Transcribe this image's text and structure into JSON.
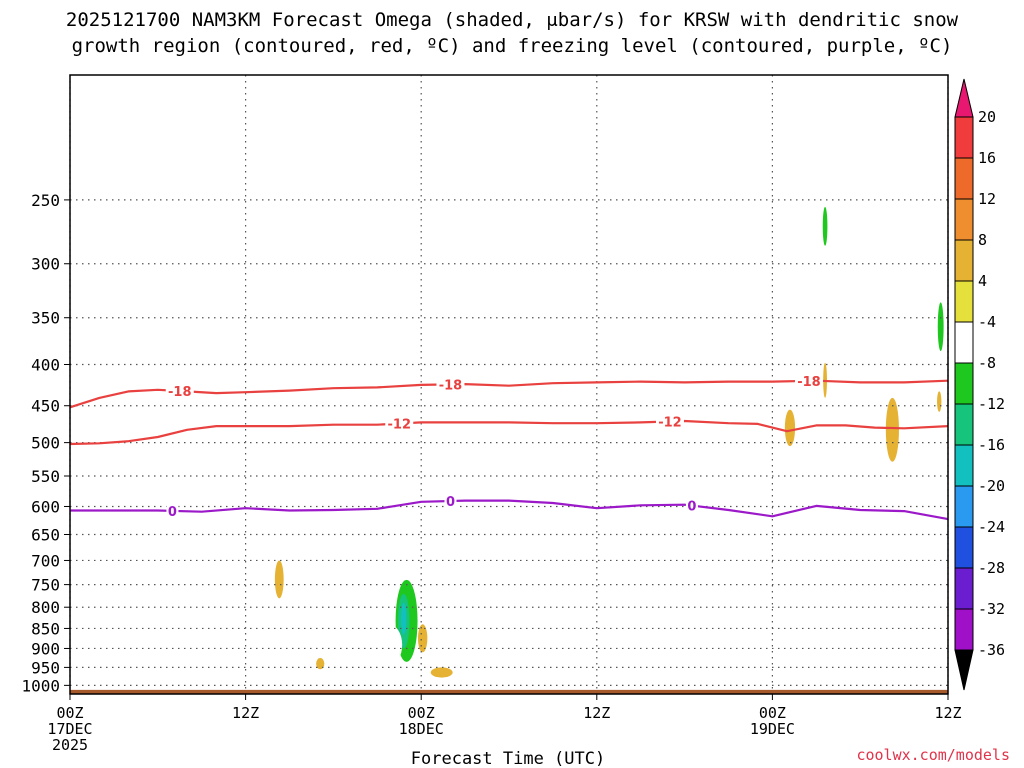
{
  "title": {
    "line1": "2025121700 NAM3KM Forecast Omega (shaded, μbar/s) for KRSW with dendritic snow",
    "line2": "growth region (contoured, red, ºC) and freezing level (contoured, purple, ºC)"
  },
  "credit": "coolwx.com/models",
  "colors": {
    "dendritic_contour": "#e8413f",
    "freezing_contour": "#9b19c8",
    "ground": "#a65a2c",
    "grid": "#555555"
  },
  "chart_data": {
    "type": "heatmap",
    "xlabel": "Forecast Time (UTC)",
    "ylabel": "",
    "x_range_hours": [
      0,
      60
    ],
    "y_range_hPa": [
      1025,
      175
    ],
    "y_scale": "log-pressure",
    "grid": true,
    "x_ticks": [
      {
        "hour": 0,
        "line1": "00Z",
        "line2": "17DEC",
        "line3": "2025"
      },
      {
        "hour": 12,
        "line1": "12Z",
        "line2": "",
        "line3": ""
      },
      {
        "hour": 24,
        "line1": "00Z",
        "line2": "18DEC",
        "line3": ""
      },
      {
        "hour": 36,
        "line1": "12Z",
        "line2": "",
        "line3": ""
      },
      {
        "hour": 48,
        "line1": "00Z",
        "line2": "19DEC",
        "line3": ""
      },
      {
        "hour": 60,
        "line1": "12Z",
        "line2": "",
        "line3": ""
      }
    ],
    "y_ticks": [
      250,
      300,
      350,
      400,
      450,
      500,
      550,
      600,
      650,
      700,
      750,
      800,
      850,
      900,
      950,
      1000
    ],
    "colorbar": {
      "label_values": [
        20,
        16,
        12,
        8,
        4,
        -4,
        -8,
        -12,
        -16,
        -20,
        -24,
        -28,
        -32,
        -36
      ],
      "colors": [
        "#e8176f",
        "#f03c3c",
        "#ee6a2a",
        "#ee8e2e",
        "#e5b233",
        "#e6e03c",
        "#ffffff",
        "#1ec81e",
        "#16c47c",
        "#13c0c0",
        "#2a9af0",
        "#2050e0",
        "#6a1ed0",
        "#a010c8",
        "#a9a9a9",
        "#000000"
      ]
    },
    "contours": [
      {
        "level": -18,
        "label": "-18",
        "color": "#e8413f",
        "points": [
          [
            0,
            452
          ],
          [
            2,
            440
          ],
          [
            4,
            432
          ],
          [
            6,
            430
          ],
          [
            8,
            432
          ],
          [
            10,
            434
          ],
          [
            12,
            433
          ],
          [
            15,
            431
          ],
          [
            18,
            428
          ],
          [
            21,
            427
          ],
          [
            24,
            424
          ],
          [
            27,
            423
          ],
          [
            30,
            425
          ],
          [
            33,
            422
          ],
          [
            36,
            421
          ],
          [
            39,
            420
          ],
          [
            42,
            421
          ],
          [
            45,
            420
          ],
          [
            48,
            420
          ],
          [
            51,
            419
          ],
          [
            54,
            421
          ],
          [
            57,
            421
          ],
          [
            60,
            419
          ]
        ],
        "label_positions": [
          [
            7.5,
            431
          ],
          [
            26,
            423
          ],
          [
            50.5,
            420
          ]
        ]
      },
      {
        "level": -12,
        "label": "-12",
        "color": "#e8413f",
        "points": [
          [
            0,
            502
          ],
          [
            2,
            501
          ],
          [
            4,
            498
          ],
          [
            6,
            492
          ],
          [
            8,
            482
          ],
          [
            10,
            477
          ],
          [
            12,
            477
          ],
          [
            15,
            477
          ],
          [
            18,
            475
          ],
          [
            21,
            475
          ],
          [
            24,
            472
          ],
          [
            27,
            472
          ],
          [
            30,
            472
          ],
          [
            33,
            473
          ],
          [
            36,
            473
          ],
          [
            39,
            472
          ],
          [
            42,
            470
          ],
          [
            45,
            473
          ],
          [
            47,
            474
          ],
          [
            49,
            484
          ],
          [
            51,
            476
          ],
          [
            53,
            476
          ],
          [
            55,
            479
          ],
          [
            57,
            480
          ],
          [
            60,
            477
          ]
        ],
        "label_positions": [
          [
            22.5,
            473
          ],
          [
            41,
            472
          ]
        ]
      },
      {
        "level": 0,
        "label": "0",
        "color": "#9b19c8",
        "points": [
          [
            0,
            607
          ],
          [
            3,
            607
          ],
          [
            6,
            607
          ],
          [
            9,
            609
          ],
          [
            12,
            603
          ],
          [
            15,
            607
          ],
          [
            18,
            606
          ],
          [
            21,
            604
          ],
          [
            24,
            592
          ],
          [
            27,
            590
          ],
          [
            30,
            590
          ],
          [
            33,
            594
          ],
          [
            36,
            603
          ],
          [
            39,
            598
          ],
          [
            42,
            597
          ],
          [
            45,
            606
          ],
          [
            48,
            617
          ],
          [
            51,
            599
          ],
          [
            54,
            606
          ],
          [
            57,
            608
          ],
          [
            60,
            622
          ]
        ],
        "label_positions": [
          [
            7,
            612
          ],
          [
            26,
            591
          ],
          [
            42.5,
            598
          ]
        ]
      }
    ],
    "omega_regions": [
      {
        "x_hour": 22.3,
        "p_center_hPa": 257,
        "x_half_width_h": 0.38,
        "p_top_hPa": 228,
        "p_bottom_hPa": 300,
        "value": -6
      },
      {
        "x_hour": 51.6,
        "p_center_hPa": 263,
        "x_half_width_h": 0.45,
        "p_top_hPa": 222,
        "p_bottom_hPa": 310,
        "value": -6
      },
      {
        "x_hour": 51.6,
        "p_center_hPa": 270,
        "x_half_width_h": 0.16,
        "p_top_hPa": 255,
        "p_bottom_hPa": 285,
        "value": -10
      },
      {
        "x_hour": 59.5,
        "p_center_hPa": 355,
        "x_half_width_h": 0.55,
        "p_top_hPa": 310,
        "p_bottom_hPa": 395,
        "value": -6
      },
      {
        "x_hour": 59.5,
        "p_center_hPa": 360,
        "x_half_width_h": 0.2,
        "p_top_hPa": 335,
        "p_bottom_hPa": 385,
        "value": -10
      },
      {
        "x_hour": 23.3,
        "p_center_hPa": 830,
        "x_half_width_h": 1.2,
        "p_top_hPa": 712,
        "p_bottom_hPa": 970,
        "value": -6
      },
      {
        "x_hour": 23.0,
        "p_center_hPa": 830,
        "x_half_width_h": 0.75,
        "p_top_hPa": 740,
        "p_bottom_hPa": 935,
        "value": -10
      },
      {
        "x_hour": 22.8,
        "p_center_hPa": 830,
        "x_half_width_h": 0.4,
        "p_top_hPa": 770,
        "p_bottom_hPa": 900,
        "value": -14
      },
      {
        "x_hour": 22.8,
        "p_center_hPa": 825,
        "x_half_width_h": 0.18,
        "p_top_hPa": 790,
        "p_bottom_hPa": 865,
        "value": -18
      },
      {
        "x_hour": 21.8,
        "p_center_hPa": 880,
        "x_half_width_h": 0.9,
        "p_top_hPa": 840,
        "p_bottom_hPa": 945,
        "value": -6
      },
      {
        "x_hour": 17.6,
        "p_center_hPa": 818,
        "x_half_width_h": 0.95,
        "p_top_hPa": 790,
        "p_bottom_hPa": 880,
        "value": -6
      },
      {
        "x_hour": 14.1,
        "p_center_hPa": 858,
        "x_half_width_h": 0.55,
        "p_top_hPa": 825,
        "p_bottom_hPa": 900,
        "value": -6
      },
      {
        "x_hour": 35.6,
        "p_center_hPa": 685,
        "x_half_width_h": 0.6,
        "p_top_hPa": 640,
        "p_bottom_hPa": 730,
        "value": -6
      },
      {
        "x_hour": 46.9,
        "p_center_hPa": 950,
        "x_half_width_h": 1.05,
        "p_top_hPa": 920,
        "p_bottom_hPa": 985,
        "value": -6
      },
      {
        "x_hour": 54.2,
        "p_center_hPa": 600,
        "x_half_width_h": 0.17,
        "p_top_hPa": 565,
        "p_bottom_hPa": 650,
        "value": -6
      },
      {
        "x_hour": 14.3,
        "p_center_hPa": 740,
        "x_half_width_h": 0.3,
        "p_top_hPa": 700,
        "p_bottom_hPa": 780,
        "value": 5
      },
      {
        "x_hour": 24.1,
        "p_center_hPa": 870,
        "x_half_width_h": 0.32,
        "p_top_hPa": 840,
        "p_bottom_hPa": 910,
        "value": 5
      },
      {
        "x_hour": 25.4,
        "p_center_hPa": 963,
        "x_half_width_h": 0.75,
        "p_top_hPa": 950,
        "p_bottom_hPa": 978,
        "value": 5
      },
      {
        "x_hour": 17.1,
        "p_center_hPa": 940,
        "x_half_width_h": 0.28,
        "p_top_hPa": 925,
        "p_bottom_hPa": 955,
        "value": 5
      },
      {
        "x_hour": 49.2,
        "p_center_hPa": 478,
        "x_half_width_h": 0.35,
        "p_top_hPa": 455,
        "p_bottom_hPa": 505,
        "value": 5
      },
      {
        "x_hour": 51.6,
        "p_center_hPa": 415,
        "x_half_width_h": 0.13,
        "p_top_hPa": 398,
        "p_bottom_hPa": 440,
        "value": 5
      },
      {
        "x_hour": 56.2,
        "p_center_hPa": 480,
        "x_half_width_h": 0.45,
        "p_top_hPa": 440,
        "p_bottom_hPa": 528,
        "value": 5
      },
      {
        "x_hour": 59.4,
        "p_center_hPa": 445,
        "x_half_width_h": 0.15,
        "p_top_hPa": 432,
        "p_bottom_hPa": 458,
        "value": 5
      }
    ],
    "ground_pressure_hPa": 1013
  }
}
